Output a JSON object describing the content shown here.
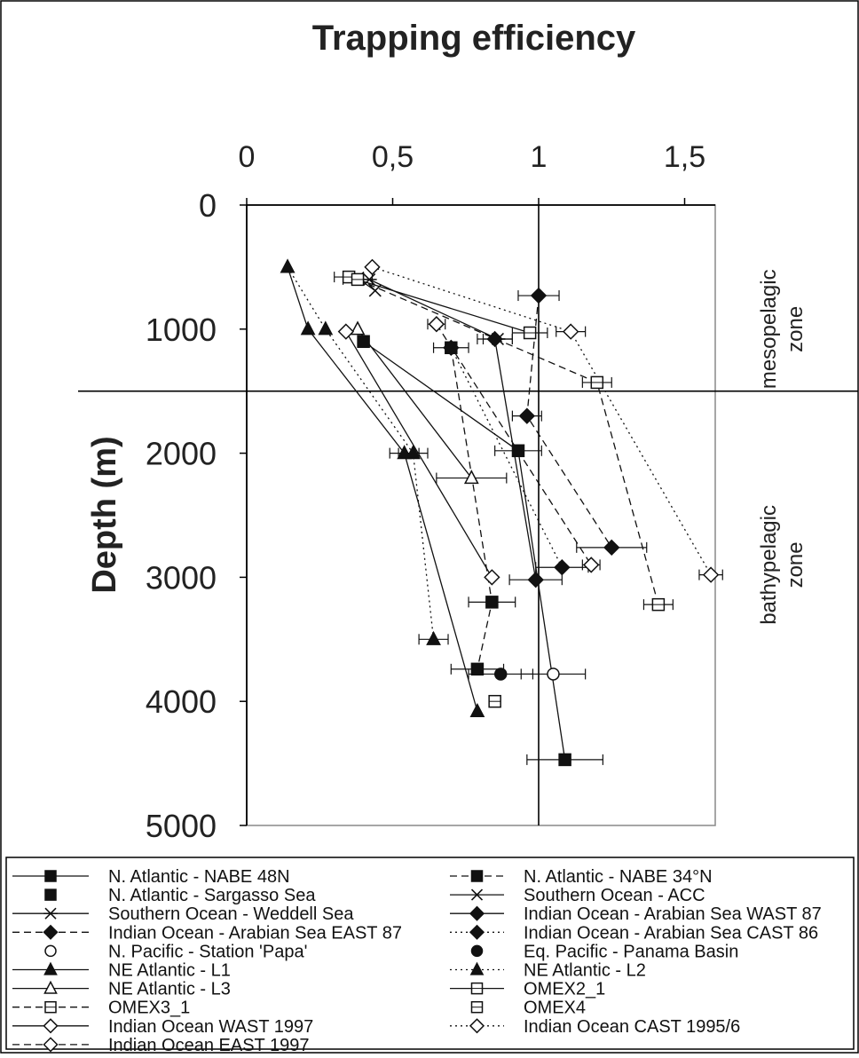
{
  "chart_data": {
    "type": "scatter",
    "title": "Trapping efficiency",
    "ylabel": "Depth (m)",
    "xlabel": "",
    "xlim": [
      0,
      1.6
    ],
    "ylim": [
      0,
      5000
    ],
    "x_axis_position": "top",
    "y_inverted": true,
    "x_ticks": [
      {
        "value": 0,
        "label": "0"
      },
      {
        "value": 0.5,
        "label": "0,5"
      },
      {
        "value": 1,
        "label": "1"
      },
      {
        "value": 1.5,
        "label": "1,5"
      }
    ],
    "y_ticks": [
      {
        "value": 0,
        "label": "0"
      },
      {
        "value": 1000,
        "label": "1000"
      },
      {
        "value": 2000,
        "label": "2000"
      },
      {
        "value": 3000,
        "label": "3000"
      },
      {
        "value": 4000,
        "label": "4000"
      },
      {
        "value": 5000,
        "label": "5000"
      }
    ],
    "reference_lines": {
      "x": 1,
      "y": 1500
    },
    "zone_labels": [
      {
        "lines": [
          "mesopelagic",
          "zone"
        ],
        "depth": 1000
      },
      {
        "lines": [
          "bathypelagic",
          "zone"
        ],
        "depth": 2900
      }
    ],
    "legend_position": "bottom",
    "series": [
      {
        "name": "N. Atlantic - NABE 48N",
        "marker": "square",
        "fill": "filled",
        "line": "solid",
        "points": [
          {
            "x": 0.4,
            "y": 1100
          },
          {
            "x": 0.93,
            "y": 1980
          },
          {
            "x": 1.09,
            "y": 4470
          }
        ],
        "errors": [
          0,
          0.08,
          0.13
        ]
      },
      {
        "name": "N. Atlantic - NABE 34°N",
        "marker": "square",
        "fill": "filled",
        "line": "dashed",
        "points": [
          {
            "x": 0.7,
            "y": 1150
          },
          {
            "x": 0.84,
            "y": 3200
          },
          {
            "x": 0.79,
            "y": 3740
          }
        ],
        "errors": [
          0.06,
          0.08,
          0.09
        ]
      },
      {
        "name": "N. Atlantic - Sargasso Sea",
        "marker": "square",
        "fill": "filled",
        "line": "none",
        "points": [],
        "errors": []
      },
      {
        "name": "Southern Ocean - ACC",
        "marker": "x",
        "fill": "none",
        "line": "solid",
        "points": [
          {
            "x": 0.38,
            "y": 590
          },
          {
            "x": 0.44,
            "y": 690
          }
        ],
        "errors": [
          0,
          0
        ]
      },
      {
        "name": "Southern Ocean - Weddell Sea",
        "marker": "star",
        "fill": "none",
        "line": "solid",
        "points": [
          {
            "x": 0.42,
            "y": 600
          },
          {
            "x": 0.86,
            "y": 1080
          }
        ],
        "errors": [
          0,
          0.05
        ]
      },
      {
        "name": "Indian Ocean - Arabian Sea WAST 87",
        "marker": "diamond",
        "fill": "filled",
        "line": "solid",
        "points": [
          {
            "x": 0.85,
            "y": 1080
          },
          {
            "x": 0.99,
            "y": 3020
          }
        ],
        "errors": [
          0.06,
          0.09
        ]
      },
      {
        "name": "Indian Ocean - Arabian Sea EAST 87",
        "marker": "diamond",
        "fill": "filled",
        "line": "dashed",
        "points": [
          {
            "x": 1,
            "y": 730
          },
          {
            "x": 0.96,
            "y": 1700
          },
          {
            "x": 1.25,
            "y": 2760
          }
        ],
        "errors": [
          0.07,
          0.05,
          0.12
        ]
      },
      {
        "name": "Indian Ocean - Arabian Sea CAST 86",
        "marker": "diamond",
        "fill": "filled",
        "line": "dotted",
        "points": [
          {
            "x": 0.7,
            "y": 1150
          },
          {
            "x": 1.08,
            "y": 2920
          }
        ],
        "errors": [
          0,
          0.09
        ]
      },
      {
        "name": "N. Pacific - Station 'Papa'",
        "marker": "circle",
        "fill": "open",
        "line": "none",
        "points": [
          {
            "x": 1.05,
            "y": 3780
          }
        ],
        "errors": [
          0.11
        ]
      },
      {
        "name": "Eq. Pacific - Panama Basin",
        "marker": "circle",
        "fill": "filled",
        "line": "none",
        "points": [
          {
            "x": 0.87,
            "y": 3780
          }
        ],
        "errors": [
          0.11
        ]
      },
      {
        "name": "NE Atlantic - L1",
        "marker": "triangle",
        "fill": "filled",
        "line": "solid",
        "points": [
          {
            "x": 0.14,
            "y": 500
          },
          {
            "x": 0.21,
            "y": 1000
          },
          {
            "x": 0.54,
            "y": 2000
          },
          {
            "x": 0.79,
            "y": 4080
          }
        ],
        "errors": [
          0,
          0,
          0.05,
          0
        ]
      },
      {
        "name": "NE Atlantic - L2",
        "marker": "triangle",
        "fill": "filled",
        "line": "dotted",
        "points": [
          {
            "x": 0.14,
            "y": 500
          },
          {
            "x": 0.27,
            "y": 1000
          },
          {
            "x": 0.57,
            "y": 2000
          },
          {
            "x": 0.64,
            "y": 3500
          }
        ],
        "errors": [
          0,
          0,
          0.05,
          0.05
        ]
      },
      {
        "name": "NE Atlantic - L3",
        "marker": "triangle",
        "fill": "open",
        "line": "solid",
        "points": [
          {
            "x": 0.38,
            "y": 1000
          },
          {
            "x": 0.77,
            "y": 2200
          }
        ],
        "errors": [
          0,
          0.12
        ]
      },
      {
        "name": "OMEX2_1",
        "marker": "square",
        "fill": "open",
        "line": "solid",
        "points": [
          {
            "x": 0.35,
            "y": 580
          },
          {
            "x": 0.97,
            "y": 1030
          }
        ],
        "errors": [
          0.05,
          0.06
        ]
      },
      {
        "name": "OMEX3_1",
        "marker": "square",
        "fill": "open",
        "line": "dashed",
        "points": [
          {
            "x": 0.38,
            "y": 600
          },
          {
            "x": 1.2,
            "y": 1430
          },
          {
            "x": 1.41,
            "y": 3220
          }
        ],
        "errors": [
          0.05,
          0.05,
          0.05
        ]
      },
      {
        "name": "OMEX4",
        "marker": "square",
        "fill": "open",
        "line": "none",
        "points": [
          {
            "x": 0.85,
            "y": 4000
          }
        ],
        "errors": [
          0
        ]
      },
      {
        "name": "Indian Ocean WAST 1997",
        "marker": "diamond",
        "fill": "open",
        "line": "solid",
        "points": [
          {
            "x": 0.34,
            "y": 1020
          },
          {
            "x": 0.84,
            "y": 3000
          }
        ],
        "errors": [
          0,
          0
        ]
      },
      {
        "name": "Indian Ocean CAST 1995/6",
        "marker": "diamond",
        "fill": "open",
        "line": "dotted",
        "points": [
          {
            "x": 0.43,
            "y": 500
          },
          {
            "x": 1.11,
            "y": 1020
          },
          {
            "x": 1.59,
            "y": 2980
          }
        ],
        "errors": [
          0,
          0.05,
          0.04
        ]
      },
      {
        "name": "Indian Ocean EAST 1997",
        "marker": "diamond",
        "fill": "open",
        "line": "dashed",
        "points": [
          {
            "x": 0.65,
            "y": 960
          },
          {
            "x": 1.18,
            "y": 2900
          }
        ],
        "errors": [
          0.03,
          0.03
        ]
      }
    ],
    "legend": [
      {
        "label": "N. Atlantic - NABE 48N",
        "marker": "square",
        "fill": "filled",
        "line": "solid"
      },
      {
        "label": "N. Atlantic - NABE 34°N",
        "marker": "square",
        "fill": "filled",
        "line": "dashed"
      },
      {
        "label": "N. Atlantic - Sargasso Sea",
        "marker": "square",
        "fill": "filled",
        "line": "none"
      },
      {
        "label": "Southern Ocean - ACC",
        "marker": "x",
        "fill": "none",
        "line": "solid"
      },
      {
        "label": "Southern Ocean - Weddell Sea",
        "marker": "star",
        "fill": "none",
        "line": "solid"
      },
      {
        "label": "Indian Ocean - Arabian Sea WAST 87",
        "marker": "diamond",
        "fill": "filled",
        "line": "solid"
      },
      {
        "label": "Indian Ocean - Arabian Sea EAST 87",
        "marker": "diamond",
        "fill": "filled",
        "line": "dashed"
      },
      {
        "label": "Indian Ocean - Arabian Sea CAST 86",
        "marker": "diamond",
        "fill": "filled",
        "line": "dotted"
      },
      {
        "label": "N. Pacific - Station 'Papa'",
        "marker": "circle",
        "fill": "open",
        "line": "none"
      },
      {
        "label": "Eq. Pacific - Panama Basin",
        "marker": "circle",
        "fill": "filled",
        "line": "none"
      },
      {
        "label": "NE Atlantic - L1",
        "marker": "triangle",
        "fill": "filled",
        "line": "solid"
      },
      {
        "label": "NE Atlantic - L2",
        "marker": "triangle",
        "fill": "filled",
        "line": "dotted"
      },
      {
        "label": "NE Atlantic - L3",
        "marker": "triangle",
        "fill": "open",
        "line": "solid"
      },
      {
        "label": "OMEX2_1",
        "marker": "square",
        "fill": "open",
        "line": "solid"
      },
      {
        "label": "OMEX3_1",
        "marker": "square",
        "fill": "open",
        "line": "dashed"
      },
      {
        "label": "OMEX4",
        "marker": "square",
        "fill": "open",
        "line": "none"
      },
      {
        "label": "Indian Ocean WAST 1997",
        "marker": "diamond",
        "fill": "open",
        "line": "solid"
      },
      {
        "label": "Indian Ocean CAST 1995/6",
        "marker": "diamond",
        "fill": "open",
        "line": "dotted"
      },
      {
        "label": "Indian Ocean EAST 1997",
        "marker": "diamond",
        "fill": "open",
        "line": "dashed"
      }
    ]
  }
}
